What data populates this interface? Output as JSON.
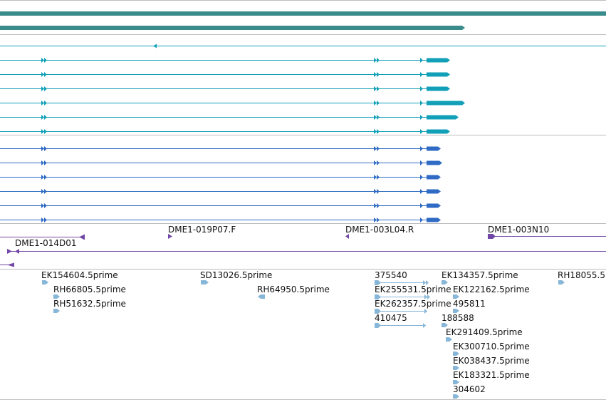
{
  "colors": {
    "separator": "#bdbdbd",
    "gene": "#3a8c8c",
    "transcript_teal": "#12a0b8",
    "transcript_blue": "#2f6bc4",
    "bac": "#7246a6",
    "est": "#86b6d8",
    "label": "#111111"
  },
  "tracks": {
    "bac_clones": {
      "labels": {
        "dme1_019p07_f": "DME1-019P07.F",
        "dme1_003l04_r": "DME1-003L04.R",
        "dme1_003n10": "DME1-003N10",
        "dme1_014d01": "DME1-014D01"
      }
    },
    "ests": {
      "labels": {
        "ek154604": "EK154604.5prime",
        "rh66805": "RH66805.5prime",
        "rh51632": "RH51632.5prime",
        "sd13026": "SD13026.5prime",
        "rh64950": "RH64950.5prime",
        "e375540": "375540",
        "ek255531": "EK255531.5prime",
        "ek262357": "EK262357.5prime",
        "e410475": "410475",
        "ek134357": "EK134357.5prime",
        "ek122162": "EK122162.5prime",
        "e495811": "495811",
        "e188588": "188588",
        "ek291409": "EK291409.5prime",
        "ek300710": "EK300710.5prime",
        "ek038437": "EK038437.5prime",
        "ek183321": "EK183321.5prime",
        "e304602": "304602",
        "rh18055": "RH18055.5"
      }
    }
  }
}
